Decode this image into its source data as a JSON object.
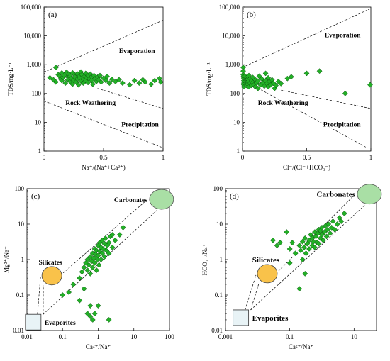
{
  "chart_data": [
    {
      "panel": "(a)",
      "type": "scatter",
      "xscale": "linear",
      "yscale": "log",
      "xlim": [
        0,
        1
      ],
      "ylim": [
        1,
        100000
      ],
      "xticks": [
        "0",
        "0.5",
        "1"
      ],
      "yticks": [
        "1",
        "10",
        "100",
        "1,000",
        "10,000",
        "100,000"
      ],
      "xlabel": "Na⁺/(Na⁺+Ca²⁺)",
      "ylabel": "TDS/mg·L⁻¹",
      "region_labels": [
        "Evaporation",
        "Rock Weathering",
        "Precipitation"
      ],
      "boundaries": {
        "upper_dashed": [
          [
            0,
            550
          ],
          [
            1,
            35000
          ]
        ],
        "lower_dashed": [
          [
            0,
            55
          ],
          [
            1,
            1.3
          ]
        ],
        "mid_dashed": [
          [
            0.45,
            150
          ],
          [
            1,
            30
          ]
        ]
      },
      "points": [
        [
          0.05,
          350
        ],
        [
          0.08,
          300
        ],
        [
          0.1,
          800
        ],
        [
          0.1,
          250
        ],
        [
          0.12,
          450
        ],
        [
          0.13,
          400
        ],
        [
          0.14,
          320
        ],
        [
          0.15,
          520
        ],
        [
          0.15,
          280
        ],
        [
          0.16,
          360
        ],
        [
          0.17,
          430
        ],
        [
          0.18,
          230
        ],
        [
          0.19,
          550
        ],
        [
          0.2,
          380
        ],
        [
          0.2,
          300
        ],
        [
          0.21,
          470
        ],
        [
          0.22,
          260
        ],
        [
          0.22,
          400
        ],
        [
          0.23,
          330
        ],
        [
          0.24,
          520
        ],
        [
          0.24,
          210
        ],
        [
          0.25,
          290
        ],
        [
          0.26,
          440
        ],
        [
          0.26,
          370
        ],
        [
          0.27,
          250
        ],
        [
          0.28,
          480
        ],
        [
          0.28,
          320
        ],
        [
          0.29,
          200
        ],
        [
          0.3,
          410
        ],
        [
          0.3,
          340
        ],
        [
          0.31,
          560
        ],
        [
          0.31,
          270
        ],
        [
          0.32,
          450
        ],
        [
          0.33,
          310
        ],
        [
          0.33,
          230
        ],
        [
          0.34,
          390
        ],
        [
          0.35,
          500
        ],
        [
          0.35,
          280
        ],
        [
          0.36,
          350
        ],
        [
          0.37,
          430
        ],
        [
          0.37,
          240
        ],
        [
          0.38,
          320
        ],
        [
          0.39,
          470
        ],
        [
          0.4,
          290
        ],
        [
          0.4,
          380
        ],
        [
          0.41,
          210
        ],
        [
          0.42,
          420
        ],
        [
          0.43,
          330
        ],
        [
          0.44,
          260
        ],
        [
          0.45,
          370
        ],
        [
          0.46,
          300
        ],
        [
          0.47,
          420
        ],
        [
          0.48,
          250
        ],
        [
          0.5,
          340
        ],
        [
          0.52,
          280
        ],
        [
          0.53,
          390
        ],
        [
          0.55,
          230
        ],
        [
          0.57,
          310
        ],
        [
          0.6,
          260
        ],
        [
          0.63,
          300
        ],
        [
          0.66,
          230
        ],
        [
          0.72,
          200
        ],
        [
          0.76,
          280
        ],
        [
          0.8,
          230
        ],
        [
          0.83,
          300
        ],
        [
          0.85,
          250
        ],
        [
          0.9,
          210
        ],
        [
          0.93,
          280
        ],
        [
          0.97,
          330
        ],
        [
          0.98,
          250
        ]
      ]
    },
    {
      "panel": "(b)",
      "type": "scatter",
      "xscale": "linear",
      "yscale": "log",
      "xlim": [
        0,
        1
      ],
      "ylim": [
        1,
        100000
      ],
      "xticks": [
        "0",
        "0.5",
        "1"
      ],
      "yticks": [
        "1",
        "10",
        "100",
        "1,000",
        "10,000",
        "100,000"
      ],
      "xlabel": "Cl⁻/(Cl⁻+HCO₃⁻)",
      "ylabel": "TDS/mg·L⁻¹",
      "region_labels": [
        "Evaporation",
        "Rock Weathering",
        "Precipitation"
      ],
      "boundaries": {
        "upper_dashed": [
          [
            0,
            800
          ],
          [
            1,
            90000
          ]
        ],
        "lower_dashed": [
          [
            0,
            300
          ],
          [
            0.97,
            1.3
          ],
          [
            1,
            1.3
          ]
        ],
        "mid_dashed": [
          [
            0.3,
            130
          ],
          [
            1,
            30
          ]
        ]
      },
      "points": [
        [
          0,
          800
        ],
        [
          0,
          600
        ],
        [
          0,
          450
        ],
        [
          0,
          380
        ],
        [
          0.01,
          330
        ],
        [
          0.01,
          280
        ],
        [
          0.01,
          230
        ],
        [
          0.01,
          200
        ],
        [
          0.01,
          170
        ],
        [
          0.02,
          400
        ],
        [
          0.02,
          320
        ],
        [
          0.02,
          260
        ],
        [
          0.02,
          220
        ],
        [
          0.03,
          350
        ],
        [
          0.03,
          290
        ],
        [
          0.03,
          240
        ],
        [
          0.03,
          190
        ],
        [
          0.04,
          310
        ],
        [
          0.04,
          250
        ],
        [
          0.04,
          210
        ],
        [
          0.05,
          420
        ],
        [
          0.05,
          280
        ],
        [
          0.05,
          170
        ],
        [
          0.06,
          330
        ],
        [
          0.06,
          230
        ],
        [
          0.07,
          270
        ],
        [
          0.07,
          190
        ],
        [
          0.08,
          360
        ],
        [
          0.08,
          240
        ],
        [
          0.09,
          200
        ],
        [
          0.1,
          300
        ],
        [
          0.1,
          170
        ],
        [
          0.11,
          230
        ],
        [
          0.12,
          270
        ],
        [
          0.12,
          150
        ],
        [
          0.13,
          400
        ],
        [
          0.14,
          200
        ],
        [
          0.15,
          320
        ],
        [
          0.16,
          230
        ],
        [
          0.17,
          180
        ],
        [
          0.18,
          500
        ],
        [
          0.18,
          280
        ],
        [
          0.19,
          220
        ],
        [
          0.2,
          350
        ],
        [
          0.2,
          170
        ],
        [
          0.21,
          260
        ],
        [
          0.22,
          200
        ],
        [
          0.23,
          300
        ],
        [
          0.24,
          230
        ],
        [
          0.25,
          150
        ],
        [
          0.26,
          190
        ],
        [
          0.28,
          260
        ],
        [
          0.3,
          220
        ],
        [
          0.35,
          330
        ],
        [
          0.38,
          380
        ],
        [
          0.5,
          500
        ],
        [
          0.6,
          600
        ],
        [
          0.8,
          100
        ],
        [
          1,
          200
        ]
      ]
    },
    {
      "panel": "(c)",
      "type": "scatter",
      "xscale": "log",
      "yscale": "log",
      "xlim": [
        0.01,
        100
      ],
      "ylim": [
        0.01,
        100
      ],
      "xticks": [
        "0.01",
        "0.1",
        "1",
        "10",
        "100"
      ],
      "yticks": [
        "0.01",
        "0.1",
        "1",
        "10",
        "100"
      ],
      "xlabel": "Ca²⁺/Na⁺",
      "ylabel": "Mg²⁺/Na⁺",
      "region_labels": [
        "Carbonates",
        "Silicates",
        "Evaporites"
      ],
      "end_members": {
        "Carbonates": {
          "center": [
            60,
            50
          ],
          "fill": "#a9dfa5"
        },
        "Silicates": {
          "center": [
            0.05,
            0.35
          ],
          "fill": "#f9c24a"
        },
        "Evaporites": {
          "center": [
            0.015,
            0.015
          ],
          "fill": "#e8f3f6"
        }
      },
      "points": [
        [
          0.3,
          0.3
        ],
        [
          0.35,
          0.45
        ],
        [
          0.4,
          0.6
        ],
        [
          0.4,
          0.15
        ],
        [
          0.45,
          0.8
        ],
        [
          0.5,
          0.5
        ],
        [
          0.5,
          1.0
        ],
        [
          0.55,
          0.7
        ],
        [
          0.6,
          1.2
        ],
        [
          0.6,
          0.4
        ],
        [
          0.65,
          0.9
        ],
        [
          0.7,
          1.5
        ],
        [
          0.7,
          0.6
        ],
        [
          0.75,
          1.1
        ],
        [
          0.8,
          2.0
        ],
        [
          0.8,
          0.8
        ],
        [
          0.85,
          1.4
        ],
        [
          0.9,
          0.5
        ],
        [
          0.9,
          1.8
        ],
        [
          0.95,
          1.0
        ],
        [
          1.0,
          2.5
        ],
        [
          1.0,
          1.3
        ],
        [
          1.05,
          0.7
        ],
        [
          1.1,
          1.7
        ],
        [
          1.1,
          3.0
        ],
        [
          1.2,
          1.0
        ],
        [
          1.2,
          2.2
        ],
        [
          1.3,
          1.5
        ],
        [
          1.3,
          3.5
        ],
        [
          1.4,
          2.0
        ],
        [
          1.5,
          1.2
        ],
        [
          1.5,
          2.8
        ],
        [
          1.6,
          4.0
        ],
        [
          1.7,
          1.8
        ],
        [
          1.8,
          2.5
        ],
        [
          2.0,
          3.0
        ],
        [
          2.0,
          1.5
        ],
        [
          2.2,
          4.5
        ],
        [
          2.5,
          2.2
        ],
        [
          2.5,
          5.0
        ],
        [
          3.0,
          3.5
        ],
        [
          4.0,
          5.0
        ],
        [
          5.0,
          8.0
        ],
        [
          0.2,
          0.2
        ],
        [
          0.15,
          0.12
        ],
        [
          0.1,
          0.1
        ],
        [
          0.3,
          0.07
        ],
        [
          0.5,
          0.03
        ],
        [
          0.6,
          0.025
        ],
        [
          0.7,
          0.02
        ],
        [
          0.8,
          0.03
        ],
        [
          1.0,
          0.05
        ],
        [
          2.0,
          0.02
        ],
        [
          0.6,
          0.05
        ]
      ]
    },
    {
      "panel": "(d)",
      "type": "scatter",
      "xscale": "log",
      "yscale": "log",
      "xlim": [
        0.001,
        50
      ],
      "ylim": [
        0.01,
        100
      ],
      "xticks": [
        "0.001",
        "0.1",
        "10"
      ],
      "yticks": [
        "0.01",
        "0.1",
        "1",
        "10",
        "100"
      ],
      "xlabel": "Ca²⁺/Na⁺",
      "ylabel": "HCO₃⁻/Na⁺",
      "region_labels": [
        "Carbonates",
        "Silicates",
        "Evaporites"
      ],
      "end_members": {
        "Carbonates": {
          "center": [
            30,
            70
          ],
          "fill": "#a9dfa5"
        },
        "Silicates": {
          "center": [
            0.02,
            0.4
          ],
          "fill": "#f9c24a"
        },
        "Evaporites": {
          "center": [
            0.003,
            0.02
          ],
          "fill": "#e8f3f6"
        }
      },
      "points": [
        [
          0.03,
          3.5
        ],
        [
          0.04,
          2.5
        ],
        [
          0.05,
          3.0
        ],
        [
          0.1,
          2.0
        ],
        [
          0.12,
          3.0
        ],
        [
          0.15,
          1.5
        ],
        [
          0.2,
          2.5
        ],
        [
          0.22,
          1.8
        ],
        [
          0.25,
          3.2
        ],
        [
          0.28,
          2.2
        ],
        [
          0.3,
          4.0
        ],
        [
          0.32,
          1.5
        ],
        [
          0.35,
          2.8
        ],
        [
          0.4,
          3.5
        ],
        [
          0.4,
          2.0
        ],
        [
          0.45,
          5.0
        ],
        [
          0.5,
          2.5
        ],
        [
          0.5,
          4.0
        ],
        [
          0.55,
          3.2
        ],
        [
          0.6,
          6.0
        ],
        [
          0.6,
          2.2
        ],
        [
          0.65,
          4.5
        ],
        [
          0.7,
          3.0
        ],
        [
          0.75,
          5.5
        ],
        [
          0.8,
          7.0
        ],
        [
          0.8,
          2.8
        ],
        [
          0.9,
          4.0
        ],
        [
          0.9,
          6.5
        ],
        [
          1.0,
          5.0
        ],
        [
          1.0,
          8.0
        ],
        [
          1.1,
          3.5
        ],
        [
          1.2,
          6.0
        ],
        [
          1.3,
          9.0
        ],
        [
          1.4,
          4.5
        ],
        [
          1.5,
          7.0
        ],
        [
          1.6,
          10.0
        ],
        [
          1.8,
          5.5
        ],
        [
          2.0,
          8.0
        ],
        [
          2.2,
          12.0
        ],
        [
          2.5,
          7.0
        ],
        [
          3.0,
          10.0
        ],
        [
          3.5,
          15.0
        ],
        [
          4.0,
          12.0
        ],
        [
          5.0,
          20.0
        ],
        [
          0.2,
          0.15
        ],
        [
          0.3,
          0.4
        ],
        [
          0.1,
          0.8
        ],
        [
          0.25,
          1.0
        ],
        [
          0.08,
          6.0
        ]
      ]
    }
  ]
}
